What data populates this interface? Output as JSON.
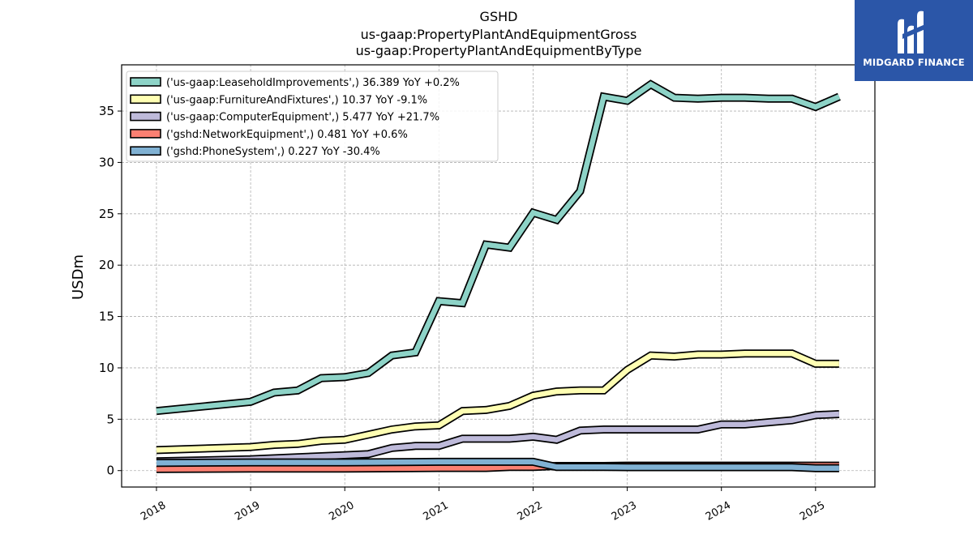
{
  "logo": {
    "text": "MIDGARD FINANCE",
    "mark": "midgard-logo-mark"
  },
  "chart_data": {
    "type": "line",
    "title": [
      "GSHD",
      "us-gaap:PropertyPlantAndEquipmentGross",
      "us-gaap:PropertyPlantAndEquipmentByType"
    ],
    "ylabel": "USDm",
    "xlabel": "",
    "xlim": [
      2017.63,
      2025.63
    ],
    "ylim": [
      -1.6,
      39.5
    ],
    "yticks": [
      0,
      5,
      10,
      15,
      20,
      25,
      30,
      35
    ],
    "xticks": [
      2018,
      2019,
      2020,
      2021,
      2022,
      2023,
      2024,
      2025
    ],
    "grid": true,
    "legend_position": "top-left",
    "series": [
      {
        "name": "('us-gaap:LeaseholdImprovements',) 36.389 YoY +0.2%",
        "color": "#8dd3c7",
        "x": [
          2018.0,
          2019.0,
          2019.25,
          2019.5,
          2019.75,
          2020.0,
          2020.25,
          2020.5,
          2020.75,
          2021.0,
          2021.25,
          2021.5,
          2021.75,
          2022.0,
          2022.25,
          2022.5,
          2022.75,
          2023.0,
          2023.25,
          2023.5,
          2023.75,
          2024.0,
          2024.25,
          2024.5,
          2024.75,
          2025.0,
          2025.25
        ],
        "values": [
          5.8,
          6.7,
          7.6,
          7.8,
          9.0,
          9.1,
          9.5,
          11.2,
          11.5,
          16.5,
          16.3,
          22.0,
          21.7,
          25.1,
          24.4,
          27.2,
          36.4,
          36.0,
          37.6,
          36.3,
          36.2,
          36.3,
          36.3,
          36.2,
          36.2,
          35.4,
          36.4
        ]
      },
      {
        "name": "('us-gaap:FurnitureAndFixtures',) 10.37 YoY -9.1%",
        "color": "#ffffb3",
        "x": [
          2018.0,
          2019.0,
          2019.25,
          2019.5,
          2019.75,
          2020.0,
          2020.25,
          2020.5,
          2020.75,
          2021.0,
          2021.25,
          2021.5,
          2021.75,
          2022.0,
          2022.25,
          2022.5,
          2022.75,
          2023.0,
          2023.25,
          2023.5,
          2023.75,
          2024.0,
          2024.25,
          2024.5,
          2024.75,
          2025.0,
          2025.25
        ],
        "values": [
          2.0,
          2.3,
          2.5,
          2.6,
          2.9,
          3.0,
          3.5,
          4.0,
          4.3,
          4.4,
          5.8,
          5.9,
          6.3,
          7.3,
          7.7,
          7.8,
          7.8,
          9.8,
          11.2,
          11.1,
          11.3,
          11.3,
          11.4,
          11.4,
          11.4,
          10.4,
          10.4
        ]
      },
      {
        "name": "('us-gaap:ComputerEquipment',) 5.477 YoY +21.7%",
        "color": "#bebada",
        "x": [
          2018.0,
          2019.0,
          2019.25,
          2019.5,
          2019.75,
          2020.0,
          2020.25,
          2020.5,
          2020.75,
          2021.0,
          2021.25,
          2021.5,
          2021.75,
          2022.0,
          2022.25,
          2022.5,
          2022.75,
          2023.0,
          2023.25,
          2023.5,
          2023.75,
          2024.0,
          2024.25,
          2024.5,
          2024.75,
          2025.0,
          2025.25
        ],
        "values": [
          0.9,
          1.1,
          1.2,
          1.3,
          1.4,
          1.5,
          1.6,
          2.2,
          2.4,
          2.4,
          3.1,
          3.1,
          3.1,
          3.3,
          3.0,
          3.9,
          4.0,
          4.0,
          4.0,
          4.0,
          4.0,
          4.5,
          4.5,
          4.7,
          4.9,
          5.4,
          5.5
        ]
      },
      {
        "name": "('gshd:NetworkEquipment',) 0.481 YoY +0.6%",
        "color": "#fb8072",
        "x": [
          2018.0,
          2019.0,
          2020.0,
          2021.0,
          2021.5,
          2021.75,
          2022.0,
          2022.25,
          2022.5,
          2022.75,
          2023.0,
          2023.25,
          2023.5,
          2023.75,
          2024.0,
          2024.25,
          2024.5,
          2024.75,
          2025.0,
          2025.25
        ],
        "values": [
          0.15,
          0.2,
          0.2,
          0.25,
          0.25,
          0.35,
          0.35,
          0.45,
          0.45,
          0.45,
          0.48,
          0.48,
          0.48,
          0.48,
          0.48,
          0.48,
          0.48,
          0.48,
          0.48,
          0.48
        ]
      },
      {
        "name": "('gshd:PhoneSystem',) 0.227 YoY -30.4%",
        "color": "#80b1d3",
        "x": [
          2018.0,
          2019.0,
          2020.0,
          2021.0,
          2021.5,
          2021.75,
          2022.0,
          2022.25,
          2022.5,
          2022.75,
          2023.0,
          2023.25,
          2023.5,
          2023.75,
          2024.0,
          2024.25,
          2024.5,
          2024.75,
          2025.0,
          2025.25
        ],
        "values": [
          0.75,
          0.8,
          0.8,
          0.85,
          0.85,
          0.85,
          0.85,
          0.35,
          0.35,
          0.35,
          0.33,
          0.33,
          0.33,
          0.33,
          0.33,
          0.33,
          0.33,
          0.33,
          0.23,
          0.23
        ]
      }
    ]
  }
}
